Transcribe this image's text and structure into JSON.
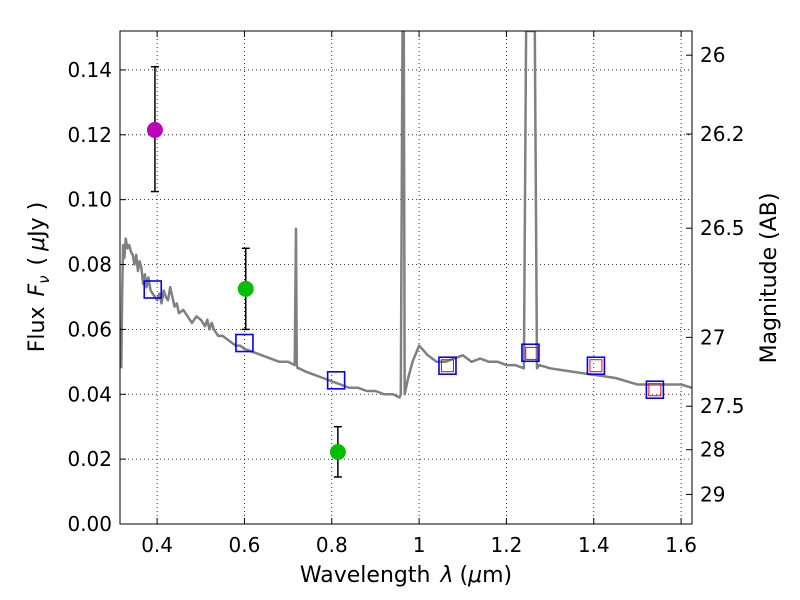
{
  "chart_data": {
    "type": "scatter",
    "xlabel_text": "Wavelength",
    "xlabel_symbol": "λ",
    "xlabel_unit_open": "(",
    "xlabel_unit_mu": "μ",
    "xlabel_unit_rest": "m)",
    "ylabel_text": "Flux",
    "ylabel_symbol": "F",
    "ylabel_sub": "ν",
    "ylabel_unit_open": "(",
    "ylabel_unit_mu": "μ",
    "ylabel_unit_rest": "Jy )",
    "y2label": "Magnitude (AB)",
    "xlim": [
      0.315,
      1.625
    ],
    "ylim": [
      0.0,
      0.152
    ],
    "grid": true,
    "x_ticks": [
      0.4,
      0.6,
      0.8,
      1.0,
      1.2,
      1.4,
      1.6
    ],
    "x_tick_labels": [
      "0.4",
      "0.6",
      "0.8",
      "1",
      "1.2",
      "1.4",
      "1.6"
    ],
    "y_ticks": [
      0.0,
      0.02,
      0.04,
      0.06,
      0.08,
      0.1,
      0.12,
      0.14
    ],
    "y_tick_labels": [
      "0.00",
      "0.02",
      "0.04",
      "0.06",
      "0.08",
      "0.10",
      "0.12",
      "0.14"
    ],
    "y2_ticks": [
      26,
      26.2,
      26.5,
      27,
      27.5,
      28,
      29
    ],
    "y2_tick_labels": [
      "26",
      "26.2",
      "26.5",
      "27",
      "27.5",
      "28",
      "29"
    ],
    "observed_points": [
      {
        "x": 0.395,
        "y": 0.1215,
        "err_low": 0.1025,
        "err_high": 0.141,
        "color": "#bf00bf"
      },
      {
        "x": 0.603,
        "y": 0.0725,
        "err_low": 0.06,
        "err_high": 0.085,
        "color": "#00bf00"
      },
      {
        "x": 0.814,
        "y": 0.0222,
        "err_low": 0.0145,
        "err_high": 0.03,
        "color": "#00bf00"
      }
    ],
    "model_photometry": {
      "color": "#0000ff",
      "x": [
        0.39,
        0.6,
        0.81,
        1.065,
        1.255,
        1.405,
        1.54
      ],
      "y": [
        0.0723,
        0.0558,
        0.0443,
        0.0488,
        0.0528,
        0.0488,
        0.0414
      ]
    },
    "hst_points": {
      "color": "#ff0000",
      "x": [
        1.065,
        1.258,
        1.405,
        1.54
      ],
      "y": [
        0.0488,
        0.0526,
        0.0488,
        0.0414
      ]
    },
    "spectrum": {
      "color": "#808080",
      "x": [
        0.318,
        0.32,
        0.322,
        0.325,
        0.328,
        0.332,
        0.336,
        0.34,
        0.344,
        0.348,
        0.352,
        0.356,
        0.36,
        0.364,
        0.368,
        0.372,
        0.376,
        0.38,
        0.385,
        0.39,
        0.395,
        0.4,
        0.405,
        0.41,
        0.415,
        0.42,
        0.425,
        0.43,
        0.435,
        0.44,
        0.445,
        0.45,
        0.46,
        0.47,
        0.48,
        0.49,
        0.5,
        0.51,
        0.515,
        0.52,
        0.525,
        0.53,
        0.54,
        0.55,
        0.56,
        0.57,
        0.58,
        0.59,
        0.6,
        0.62,
        0.64,
        0.66,
        0.68,
        0.7,
        0.715,
        0.718,
        0.72,
        0.722,
        0.725,
        0.74,
        0.76,
        0.78,
        0.8,
        0.82,
        0.84,
        0.86,
        0.88,
        0.9,
        0.92,
        0.94,
        0.955,
        0.958,
        0.962,
        0.965,
        0.967,
        0.97,
        0.975,
        0.985,
        1.0,
        1.02,
        1.04,
        1.06,
        1.08,
        1.1,
        1.12,
        1.14,
        1.16,
        1.18,
        1.2,
        1.22,
        1.24,
        1.245,
        1.25,
        1.265,
        1.27,
        1.275,
        1.3,
        1.35,
        1.4,
        1.45,
        1.5,
        1.55,
        1.6,
        1.625
      ],
      "y": [
        0.048,
        0.072,
        0.086,
        0.082,
        0.088,
        0.085,
        0.086,
        0.084,
        0.083,
        0.08,
        0.083,
        0.078,
        0.081,
        0.079,
        0.074,
        0.077,
        0.073,
        0.076,
        0.072,
        0.071,
        0.07,
        0.069,
        0.071,
        0.068,
        0.072,
        0.07,
        0.069,
        0.073,
        0.07,
        0.067,
        0.068,
        0.065,
        0.066,
        0.064,
        0.062,
        0.064,
        0.063,
        0.061,
        0.063,
        0.06,
        0.062,
        0.06,
        0.058,
        0.058,
        0.057,
        0.056,
        0.055,
        0.055,
        0.054,
        0.053,
        0.052,
        0.051,
        0.05,
        0.05,
        0.049,
        0.091,
        0.049,
        0.048,
        0.048,
        0.047,
        0.046,
        0.045,
        0.044,
        0.043,
        0.042,
        0.042,
        0.041,
        0.041,
        0.04,
        0.04,
        0.039,
        0.04,
        0.152,
        0.152,
        0.04,
        0.042,
        0.045,
        0.05,
        0.055,
        0.052,
        0.05,
        0.05,
        0.051,
        0.052,
        0.05,
        0.051,
        0.05,
        0.05,
        0.049,
        0.049,
        0.048,
        0.152,
        0.152,
        0.152,
        0.048,
        0.049,
        0.048,
        0.047,
        0.046,
        0.045,
        0.043,
        0.043,
        0.043,
        0.042
      ]
    }
  }
}
